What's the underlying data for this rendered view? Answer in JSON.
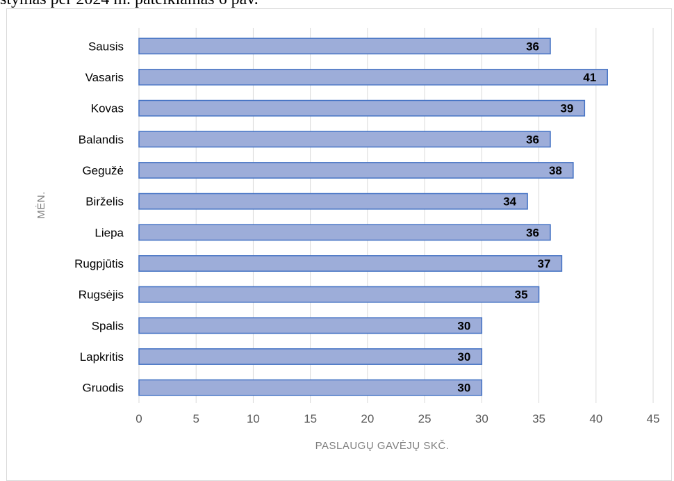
{
  "caption_fragment": "stymas per 2024 m. pateikiamas 6 pav.",
  "chart_data": {
    "type": "bar",
    "orientation": "horizontal",
    "categories": [
      "Sausis",
      "Vasaris",
      "Kovas",
      "Balandis",
      "Gegužė",
      "Birželis",
      "Liepa",
      "Rugpjūtis",
      "Rugsėjis",
      "Spalis",
      "Lapkritis",
      "Gruodis"
    ],
    "values": [
      36,
      41,
      39,
      36,
      38,
      34,
      36,
      37,
      35,
      30,
      30,
      30
    ],
    "xlabel": "PASLAUGŲ GAVĖJŲ SKČ.",
    "ylabel": "MĖN.",
    "xlim": [
      0,
      45
    ],
    "xticks": [
      0,
      5,
      10,
      15,
      20,
      25,
      30,
      35,
      40,
      45
    ],
    "grid": "vertical",
    "data_labels": true,
    "bar_color": "#9dadd9",
    "bar_border_color": "#4472c4",
    "grid_color": "#d9d9d9"
  }
}
